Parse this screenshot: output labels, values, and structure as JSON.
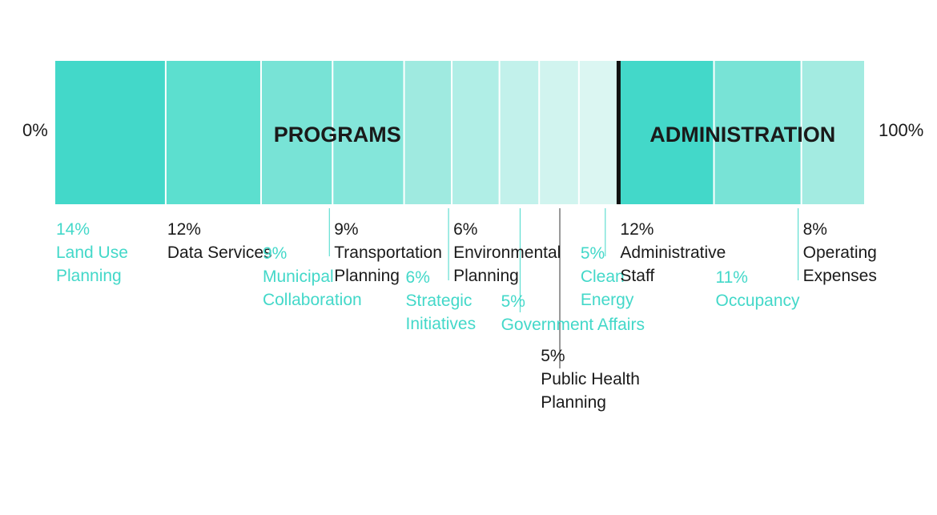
{
  "chart_data": {
    "type": "bar",
    "orientation": "horizontal-stacked",
    "axis": {
      "start_label": "0%",
      "end_label": "100%"
    },
    "groups": [
      {
        "name": "PROGRAMS"
      },
      {
        "name": "ADMINISTRATION"
      }
    ],
    "segments": [
      {
        "group": "PROGRAMS",
        "value": 14,
        "value_label": "14%",
        "label_lines": [
          "Land Use",
          "Planning"
        ],
        "color": "#43d8c9",
        "label_color": "#43d8c9"
      },
      {
        "group": "PROGRAMS",
        "value": 12,
        "value_label": "12%",
        "label_lines": [
          "Data Services"
        ],
        "color": "#5cdfcf",
        "label_color": "#1a1a1a"
      },
      {
        "group": "PROGRAMS",
        "value": 9,
        "value_label": "9%",
        "label_lines": [
          "Municipal",
          "Collaboration"
        ],
        "color": "#78e3d6",
        "label_color": "#43d8c9"
      },
      {
        "group": "PROGRAMS",
        "value": 9,
        "value_label": "9%",
        "label_lines": [
          "Transportation",
          "Planning"
        ],
        "color": "#84e6da",
        "label_color": "#1a1a1a"
      },
      {
        "group": "PROGRAMS",
        "value": 6,
        "value_label": "6%",
        "label_lines": [
          "Strategic",
          "Initiatives"
        ],
        "color": "#9feae0",
        "label_color": "#43d8c9"
      },
      {
        "group": "PROGRAMS",
        "value": 6,
        "value_label": "6%",
        "label_lines": [
          "Environmental",
          "Planning"
        ],
        "color": "#b0eee6",
        "label_color": "#1a1a1a"
      },
      {
        "group": "PROGRAMS",
        "value": 5,
        "value_label": "5%",
        "label_lines": [
          "Government Affairs"
        ],
        "color": "#c2f1eb",
        "label_color": "#43d8c9"
      },
      {
        "group": "PROGRAMS",
        "value": 5,
        "value_label": "5%",
        "label_lines": [
          "Public Health",
          "Planning"
        ],
        "color": "#d1f4ef",
        "label_color": "#1a1a1a"
      },
      {
        "group": "PROGRAMS",
        "value": 5,
        "value_label": "5%",
        "label_lines": [
          "Clean",
          "Energy"
        ],
        "color": "#dbf6f2",
        "label_color": "#43d8c9"
      },
      {
        "group": "ADMINISTRATION",
        "value": 12,
        "value_label": "12%",
        "label_lines": [
          "Administrative",
          "Staff"
        ],
        "color": "#43d8c9",
        "label_color": "#1a1a1a"
      },
      {
        "group": "ADMINISTRATION",
        "value": 11,
        "value_label": "11%",
        "label_lines": [
          "Occupancy"
        ],
        "color": "#78e3d6",
        "label_color": "#43d8c9"
      },
      {
        "group": "ADMINISTRATION",
        "value": 8,
        "value_label": "8%",
        "label_lines": [
          "Operating",
          "Expenses"
        ],
        "color": "#a3ebe1",
        "label_color": "#1a1a1a"
      }
    ]
  }
}
